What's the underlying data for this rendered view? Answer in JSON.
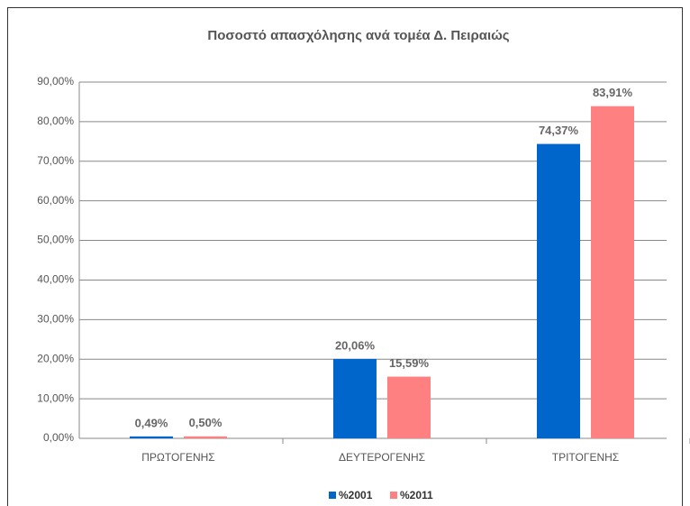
{
  "chart_data": {
    "type": "bar",
    "title": "Ποσοστό απασχόλησης ανά τομέα Δ. Πειραιώς",
    "categories": [
      "ΠΡΩΤΟΓΕΝΗΣ",
      "ΔΕΥΤΕΡΟΓΕΝΗΣ",
      "ΤΡΙΤΟΓΕΝΗΣ"
    ],
    "series": [
      {
        "name": "%2001",
        "color": "#0066cc",
        "values": [
          0.49,
          20.06,
          74.37
        ],
        "value_labels": [
          "0,49%",
          "20,06%",
          "74,37%"
        ]
      },
      {
        "name": "%2011",
        "color": "#ff8080",
        "values": [
          0.5,
          15.59,
          83.91
        ],
        "value_labels": [
          "0,50%",
          "15,59%",
          "83,91%"
        ]
      }
    ],
    "ylim": [
      0,
      90
    ],
    "yticks": [
      {
        "value": 0,
        "label": "0,00%"
      },
      {
        "value": 10,
        "label": "10,00%"
      },
      {
        "value": 20,
        "label": "20,00%"
      },
      {
        "value": 30,
        "label": "30,00%"
      },
      {
        "value": 40,
        "label": "40,00%"
      },
      {
        "value": 50,
        "label": "50,00%"
      },
      {
        "value": 60,
        "label": "60,00%"
      },
      {
        "value": 70,
        "label": "70,00%"
      },
      {
        "value": 80,
        "label": "80,00%"
      },
      {
        "value": 90,
        "label": "90,00%"
      }
    ],
    "grid": true,
    "legend": "bottom"
  }
}
